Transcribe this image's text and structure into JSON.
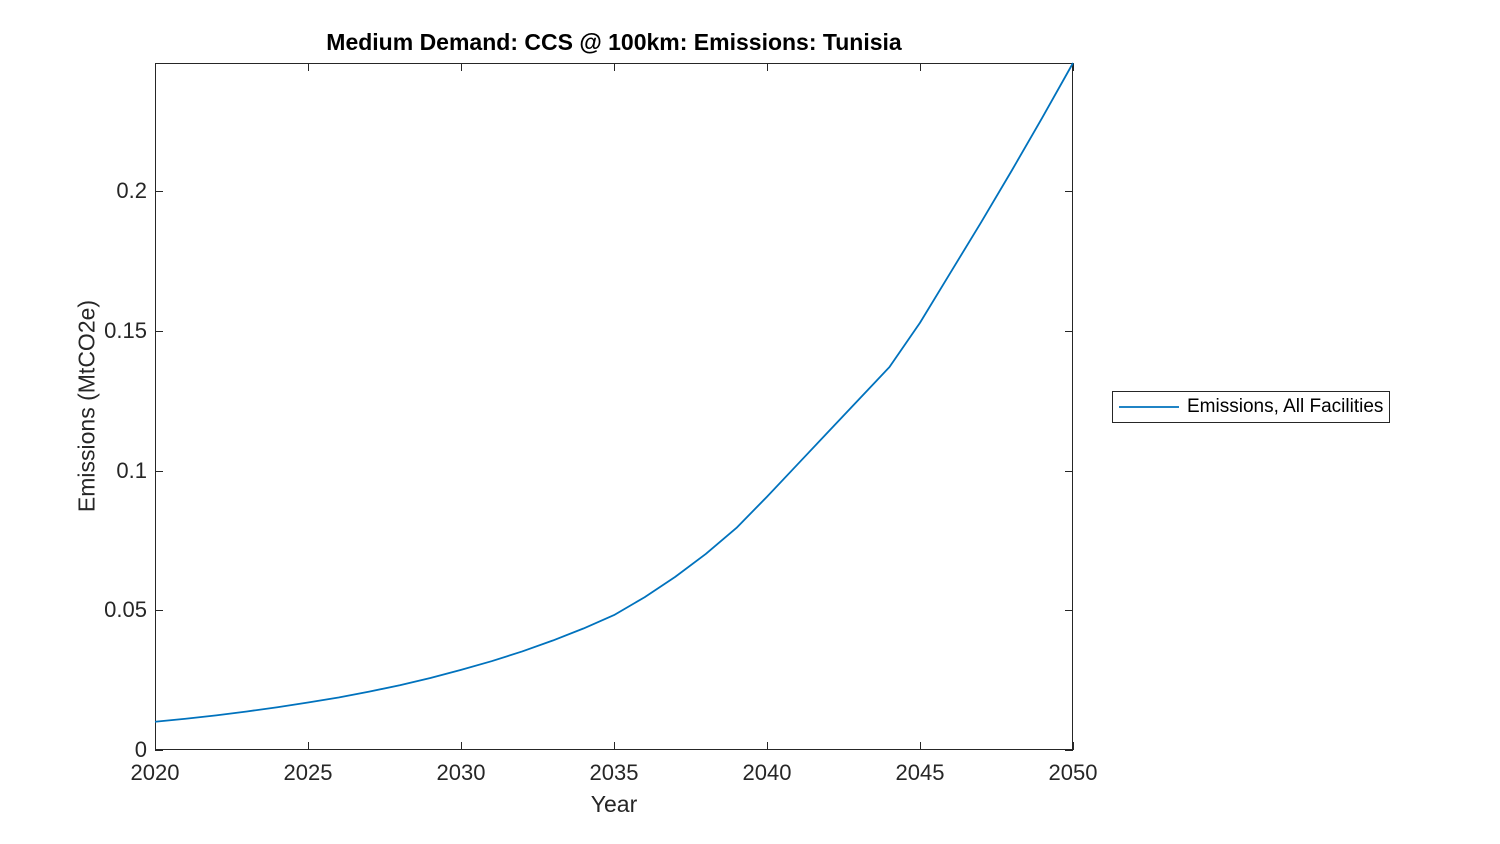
{
  "chart_data": {
    "type": "line",
    "title": "Medium Demand: CCS @ 100km: Emissions: Tunisia",
    "xlabel": "Year",
    "ylabel": "Emissions (MtCO2e)",
    "legend": [
      "Emissions, All Facilities"
    ],
    "legend_position": "right-outside",
    "grid": false,
    "box": true,
    "xlim": [
      2020,
      2050
    ],
    "ylim": [
      0,
      0.246
    ],
    "x_ticks": [
      2020,
      2025,
      2030,
      2035,
      2040,
      2045,
      2050
    ],
    "y_ticks": [
      0,
      0.05,
      0.1,
      0.15,
      0.2
    ],
    "y_tick_labels": [
      "0",
      "0.05",
      "0.1",
      "0.15",
      "0.2"
    ],
    "series": [
      {
        "name": "Emissions, All Facilities",
        "color": "#0072BD",
        "x": [
          2020,
          2021,
          2022,
          2023,
          2024,
          2025,
          2026,
          2027,
          2028,
          2029,
          2030,
          2031,
          2032,
          2033,
          2034,
          2035,
          2036,
          2037,
          2038,
          2039,
          2040,
          2041,
          2042,
          2043,
          2044,
          2045,
          2046,
          2047,
          2048,
          2049,
          2050
        ],
        "values": [
          0.0101,
          0.0112,
          0.0124,
          0.0138,
          0.0153,
          0.017,
          0.0188,
          0.0209,
          0.0232,
          0.0258,
          0.0287,
          0.0318,
          0.0353,
          0.0392,
          0.0435,
          0.0483,
          0.0547,
          0.062,
          0.0702,
          0.0795,
          0.0907,
          0.1023,
          0.1139,
          0.1255,
          0.1371,
          0.153,
          0.171,
          0.189,
          0.2075,
          0.2265,
          0.246
        ]
      }
    ],
    "colors": {
      "line": "#0072BD",
      "axis": "#262626",
      "background": "#ffffff"
    }
  }
}
